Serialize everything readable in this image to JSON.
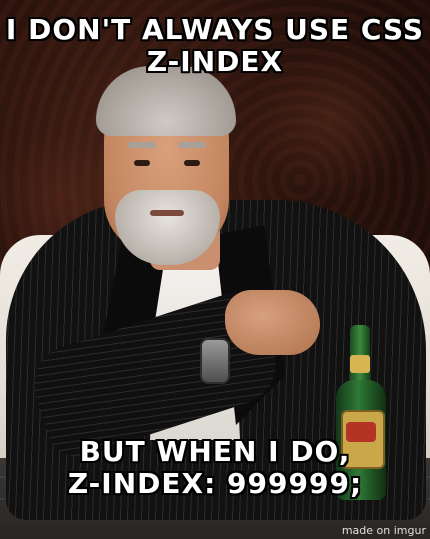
{
  "meme": {
    "top_text": [
      "I DON'T ALWAYS USE CSS",
      "Z-INDEX"
    ],
    "bottom_text": [
      "BUT WHEN I DO,",
      "Z-INDEX: 999999;"
    ],
    "watermark": "made on imgur"
  }
}
